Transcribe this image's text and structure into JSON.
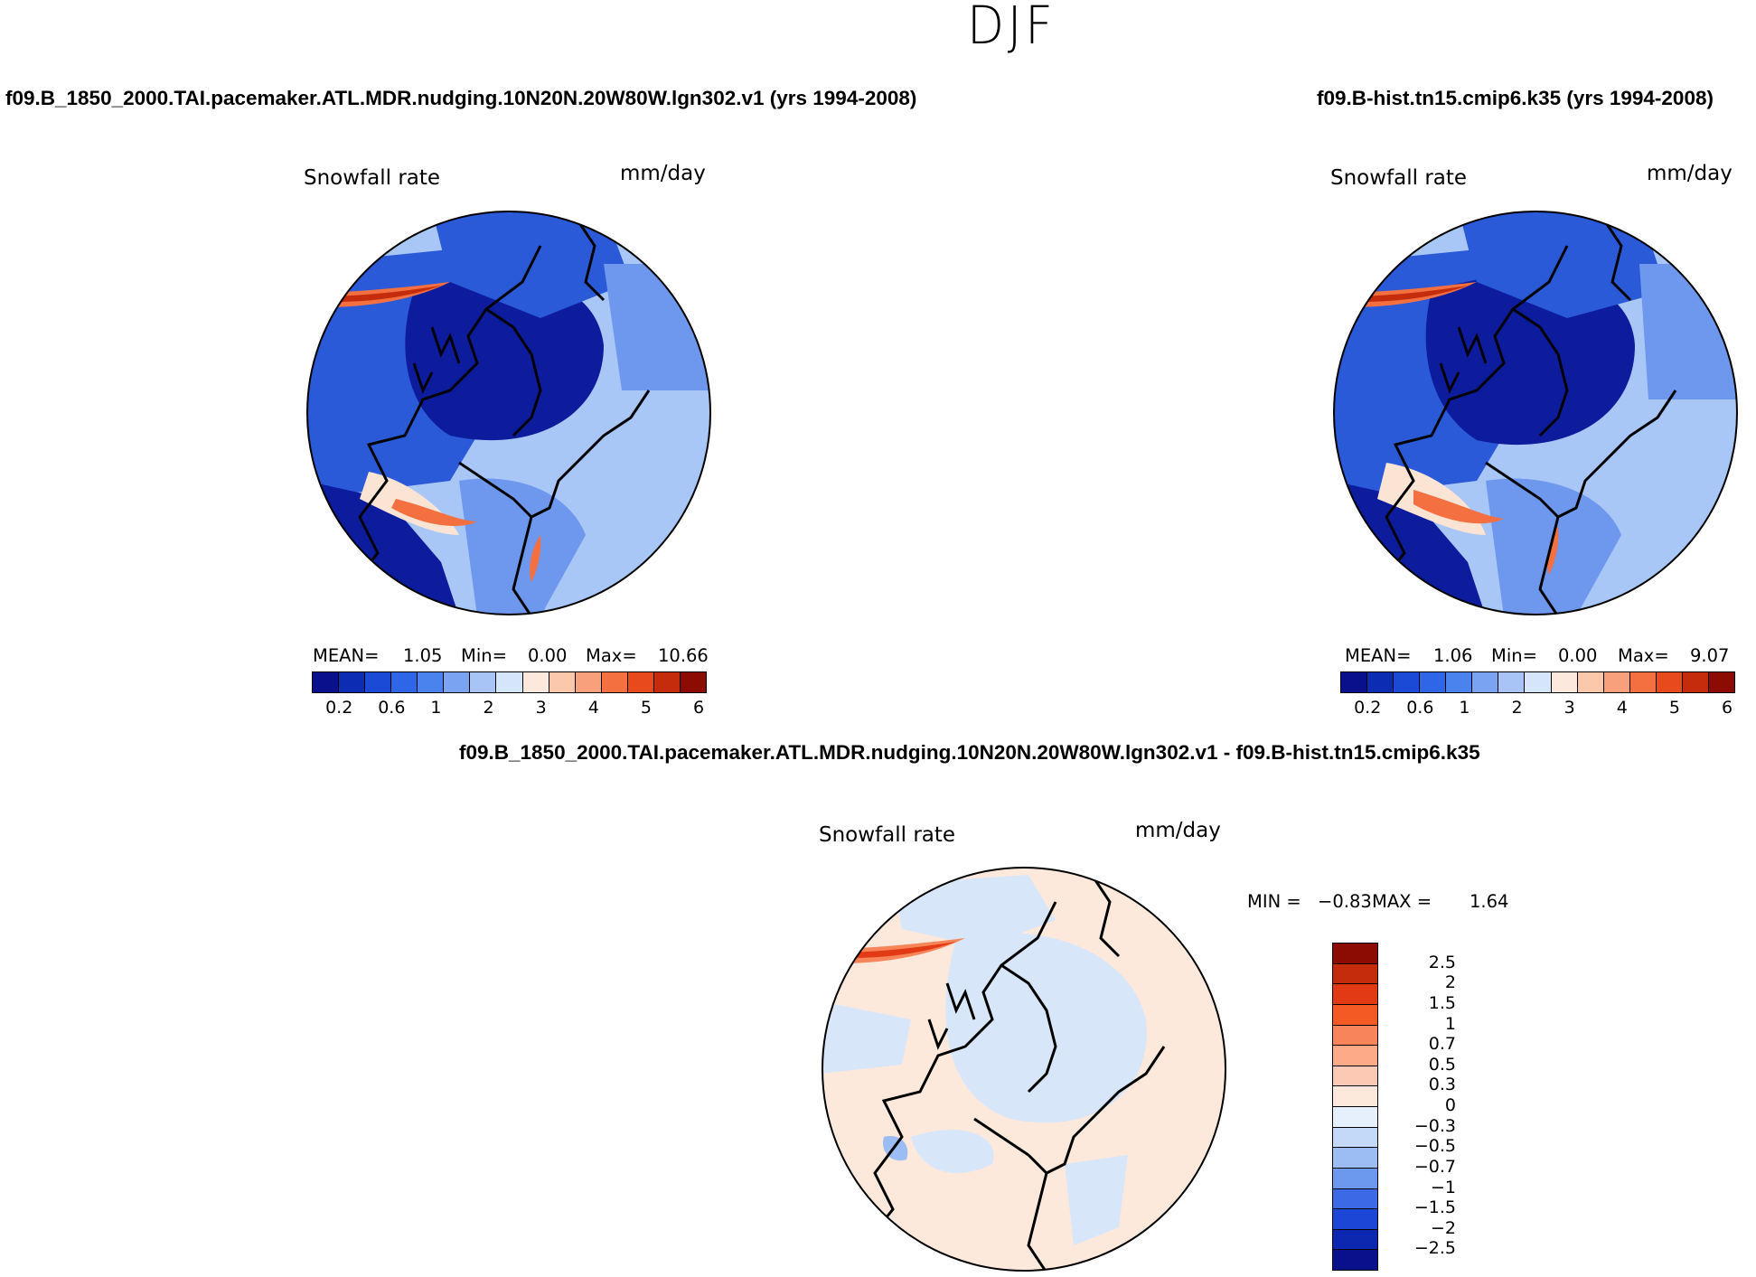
{
  "figure": {
    "season_title": "DJF"
  },
  "panels": {
    "left": {
      "case_title": "f09.B_1850_2000.TAI.pacemaker.ATL.MDR.nudging.10N20N.20W80W.lgn302.v1 (yrs 1994-2008)",
      "variable_label": "Snowfall rate",
      "units_label": "mm/day",
      "stats": {
        "mean_label": "MEAN=",
        "mean_value": "1.05",
        "min_label": "Min=",
        "min_value": "0.00",
        "max_label": "Max=",
        "max_value": "10.66"
      }
    },
    "right": {
      "case_title": "f09.B-hist.tn15.cmip6.k35 (yrs 1994-2008)",
      "variable_label": "Snowfall rate",
      "units_label": "mm/day",
      "stats": {
        "mean_label": "MEAN=",
        "mean_value": "1.06",
        "min_label": "Min=",
        "min_value": "0.00",
        "max_label": "Max=",
        "max_value": "9.07"
      }
    },
    "difference": {
      "case_title": "f09.B_1850_2000.TAI.pacemaker.ATL.MDR.nudging.10N20N.20W80W.lgn302.v1 - f09.B-hist.tn15.cmip6.k35",
      "variable_label": "Snowfall rate",
      "units_label": "mm/day",
      "stats": {
        "min_label": "MIN =",
        "min_value": "−0.83",
        "max_label": "MAX =",
        "max_value": "1.64"
      }
    }
  },
  "colorbars": {
    "absolute": {
      "colors": [
        "#08108c",
        "#0c2cb4",
        "#1a4ad6",
        "#2f66e8",
        "#4a82ee",
        "#7aa4f2",
        "#a8c4f6",
        "#d6e6fa",
        "#fce8dc",
        "#fcc8ac",
        "#f8a07c",
        "#f47040",
        "#e84a1c",
        "#c42c0c",
        "#8c0c04"
      ],
      "tick_labels": [
        "0.2",
        "0.6",
        "1",
        "2",
        "3",
        "4",
        "5",
        "6"
      ]
    },
    "difference": {
      "colors": [
        "#8c0c04",
        "#c42c0c",
        "#e23a14",
        "#f45a24",
        "#f8845a",
        "#fcaa88",
        "#fccab4",
        "#fde8dc",
        "#e6f0fc",
        "#c4d8f8",
        "#9cbcf4",
        "#6c98ee",
        "#3c6ae6",
        "#1c46d6",
        "#0c28b0",
        "#08108c"
      ],
      "tick_labels": [
        "2.5",
        "2",
        "1.5",
        "1",
        "0.7",
        "0.5",
        "0.3",
        "0",
        "−0.3",
        "−0.5",
        "−0.7",
        "−1",
        "−1.5",
        "−2",
        "−2.5"
      ]
    }
  },
  "map_colors": {
    "deep_blue": "#0c1c9c",
    "mid_blue": "#2a5ad8",
    "light_blue": "#6e98ee",
    "pale_blue": "#a8c6f6",
    "peach": "#fce4d4",
    "orange": "#f47040",
    "red": "#c42c0c",
    "diff_bg": "#fde9dc",
    "diff_blue": "#d8e6fa"
  }
}
